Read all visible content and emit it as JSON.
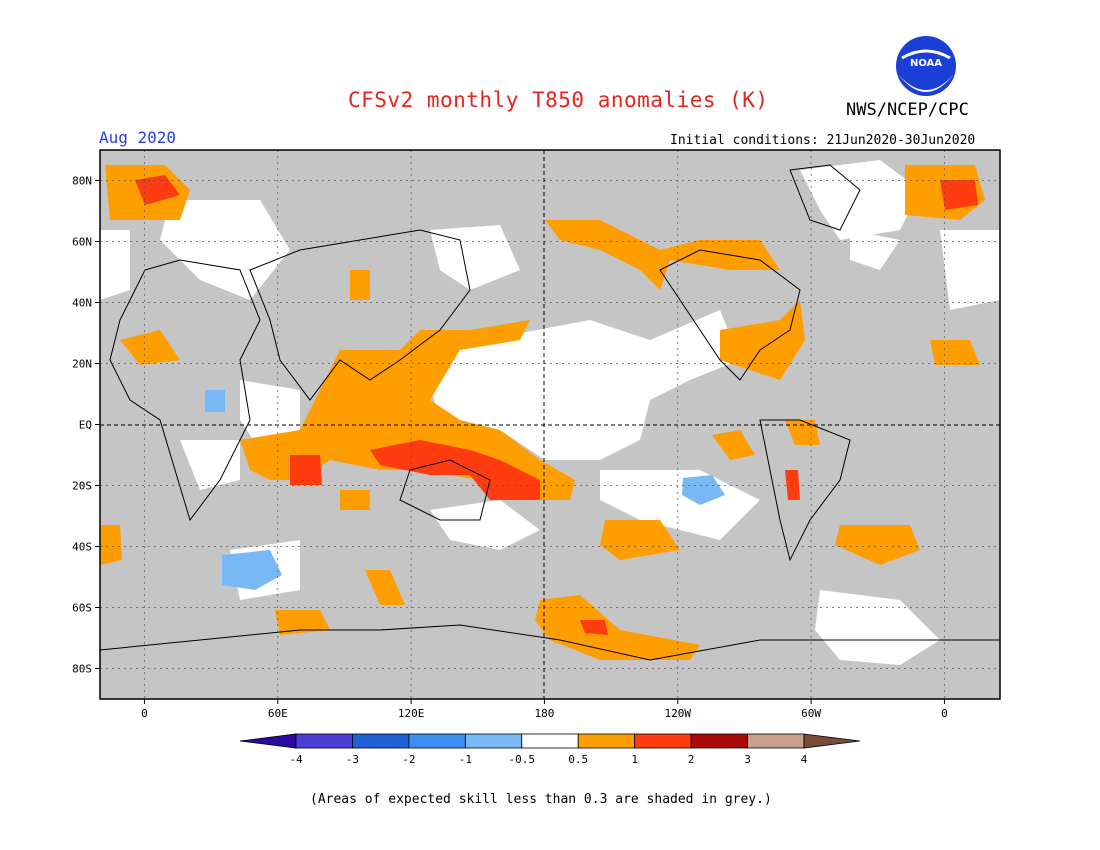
{
  "header": {
    "title": "CFSv2 monthly T850 anomalies (K)",
    "agency": "NWS/NCEP/CPC",
    "logo_text": "NOAA",
    "month": "Aug 2020",
    "initial_conditions": "Initial conditions: 21Jun2020-30Jun2020"
  },
  "axes": {
    "lat_labels": [
      "80N",
      "60N",
      "40N",
      "20N",
      "EQ",
      "20S",
      "40S",
      "60S",
      "80S"
    ],
    "lat_values": [
      80,
      60,
      40,
      20,
      0,
      -20,
      -40,
      -60,
      -80
    ],
    "lon_labels": [
      "0",
      "60E",
      "120E",
      "180",
      "120W",
      "60W",
      "0"
    ],
    "lon_values": [
      0,
      60,
      120,
      180,
      240,
      300,
      360
    ],
    "lon_range": [
      -20,
      385
    ],
    "lat_range": [
      -90,
      90
    ]
  },
  "colorbar": {
    "labels": [
      "-4",
      "-3",
      "-2",
      "-1",
      "-0.5",
      "0.5",
      "1",
      "2",
      "3",
      "4"
    ],
    "colors": [
      "#2a0aa0",
      "#4c3fd4",
      "#1f62d8",
      "#3a8ff0",
      "#78b8f5",
      "#ffffff",
      "#ff9e00",
      "#ff3b10",
      "#aa0a0a",
      "#c9a08e",
      "#7a4a3a"
    ]
  },
  "footnote": "(Areas of expected skill less than 0.3 are shaded in grey.)",
  "colors": {
    "grey_skill": "#c5c5c5",
    "orange": "#ff9e00",
    "red": "#ff3b10",
    "light_blue": "#78b8f5",
    "title_red": "#e8231c",
    "month_blue": "#2b3de6"
  }
}
